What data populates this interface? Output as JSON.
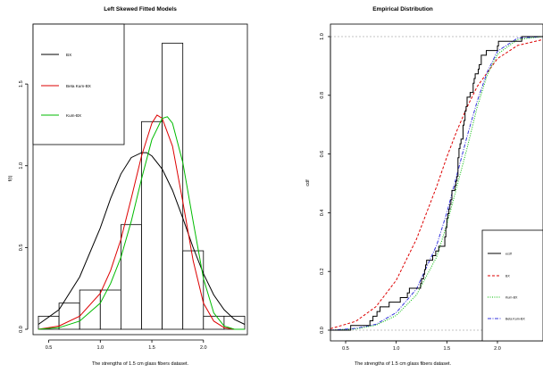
{
  "chart_data": [
    {
      "type": "histogram",
      "title": "Left Skewed Fitted Models",
      "xlabel": "The strengths of 1.5 cm glass fibers dataset.",
      "ylabel": "f(t)",
      "xlim": [
        0.4,
        2.4
      ],
      "ylim": [
        0,
        1.85
      ],
      "x_ticks": [
        0.5,
        1.0,
        1.5,
        2.0
      ],
      "x_tick_labels": [
        "0.5",
        "1.0",
        "1.5",
        "2.0"
      ],
      "y_ticks": [
        0,
        0.5,
        1.0,
        1.5
      ],
      "y_tick_labels": [
        "0.0",
        "0.5",
        "1.0",
        "1.5"
      ],
      "histogram": {
        "breaks": [
          0.4,
          0.6,
          0.8,
          1.0,
          1.2,
          1.4,
          1.6,
          1.8,
          2.0,
          2.2,
          2.4
        ],
        "density": [
          0.08,
          0.16,
          0.24,
          0.24,
          0.64,
          1.27,
          1.75,
          0.48,
          0.08,
          0.08
        ]
      },
      "legend": {
        "position": "top-left",
        "entries": [
          "BX",
          "Beta Kum-BX",
          "Kum-BX"
        ]
      },
      "series": [
        {
          "name": "BX",
          "color": "#000000",
          "x": [
            0.4,
            0.6,
            0.8,
            1.0,
            1.1,
            1.2,
            1.3,
            1.4,
            1.45,
            1.5,
            1.6,
            1.7,
            1.8,
            1.9,
            2.0,
            2.1,
            2.2,
            2.3,
            2.4
          ],
          "y": [
            0.03,
            0.12,
            0.32,
            0.62,
            0.8,
            0.95,
            1.05,
            1.08,
            1.08,
            1.06,
            0.98,
            0.85,
            0.68,
            0.5,
            0.34,
            0.21,
            0.12,
            0.06,
            0.03
          ]
        },
        {
          "name": "Beta Kum-BX",
          "color": "#dd0000",
          "x": [
            0.4,
            0.6,
            0.8,
            1.0,
            1.1,
            1.2,
            1.3,
            1.4,
            1.5,
            1.55,
            1.6,
            1.7,
            1.8,
            1.9,
            2.0,
            2.1,
            2.2,
            2.3,
            2.4
          ],
          "y": [
            0.0,
            0.02,
            0.08,
            0.22,
            0.36,
            0.55,
            0.8,
            1.06,
            1.26,
            1.31,
            1.29,
            1.12,
            0.78,
            0.42,
            0.16,
            0.05,
            0.01,
            0.0,
            0.0
          ]
        },
        {
          "name": "Kum-BX",
          "color": "#00bb00",
          "x": [
            0.4,
            0.6,
            0.8,
            1.0,
            1.1,
            1.2,
            1.3,
            1.4,
            1.5,
            1.6,
            1.65,
            1.7,
            1.8,
            1.9,
            2.0,
            2.1,
            2.2,
            2.3,
            2.4
          ],
          "y": [
            0.0,
            0.01,
            0.05,
            0.16,
            0.28,
            0.44,
            0.66,
            0.92,
            1.16,
            1.29,
            1.3,
            1.26,
            1.02,
            0.66,
            0.31,
            0.1,
            0.02,
            0.0,
            0.0
          ]
        }
      ]
    },
    {
      "type": "line",
      "title": "Empirical Distribution",
      "xlabel": "The strengths of 1.5 cm glass fibers dataset.",
      "ylabel": "cdf",
      "xlim": [
        0.35,
        2.45
      ],
      "ylim": [
        0,
        1.04
      ],
      "x_ticks": [
        0.5,
        1.0,
        1.5,
        2.0
      ],
      "x_tick_labels": [
        "0.5",
        "1.0",
        "1.5",
        "2.0"
      ],
      "y_ticks": [
        0,
        0.2,
        0.4,
        0.6,
        0.8,
        1.0
      ],
      "y_tick_labels": [
        "0.0",
        "0.2",
        "0.4",
        "0.6",
        "0.8",
        "1.0"
      ],
      "reference_lines": [
        0,
        1
      ],
      "legend": {
        "position": "bottom-right",
        "entries": [
          "ecdf",
          "BX",
          "Kum-BX",
          "Beta Kum-BX"
        ]
      },
      "ecdf_data": [
        0.55,
        0.74,
        0.77,
        0.81,
        0.84,
        0.93,
        1.04,
        1.11,
        1.13,
        1.24,
        1.25,
        1.27,
        1.28,
        1.29,
        1.3,
        1.36,
        1.39,
        1.42,
        1.48,
        1.48,
        1.49,
        1.49,
        1.5,
        1.5,
        1.51,
        1.52,
        1.53,
        1.54,
        1.55,
        1.55,
        1.58,
        1.59,
        1.6,
        1.61,
        1.61,
        1.61,
        1.61,
        1.62,
        1.62,
        1.63,
        1.64,
        1.66,
        1.66,
        1.66,
        1.67,
        1.68,
        1.68,
        1.69,
        1.7,
        1.7,
        1.73,
        1.76,
        1.76,
        1.77,
        1.78,
        1.81,
        1.82,
        1.84,
        1.84,
        1.89,
        2.0,
        2.01,
        2.24
      ],
      "series": [
        {
          "name": "ecdf",
          "color": "#000000",
          "style": "solid"
        },
        {
          "name": "BX",
          "color": "#dd0000",
          "style": "dashed",
          "x": [
            0.35,
            0.6,
            0.8,
            1.0,
            1.2,
            1.4,
            1.5,
            1.6,
            1.7,
            1.8,
            2.0,
            2.2,
            2.45
          ],
          "y": [
            0.005,
            0.03,
            0.08,
            0.17,
            0.31,
            0.49,
            0.59,
            0.68,
            0.76,
            0.83,
            0.925,
            0.97,
            0.99
          ]
        },
        {
          "name": "Kum-BX",
          "color": "#00bb00",
          "style": "dotted",
          "x": [
            0.35,
            0.6,
            0.8,
            1.0,
            1.2,
            1.4,
            1.5,
            1.6,
            1.7,
            1.8,
            1.9,
            2.0,
            2.2,
            2.45
          ],
          "y": [
            0.0,
            0.004,
            0.017,
            0.05,
            0.12,
            0.25,
            0.36,
            0.49,
            0.62,
            0.76,
            0.87,
            0.94,
            0.99,
            1.0
          ]
        },
        {
          "name": "Beta Kum-BX",
          "color": "#3333dd",
          "style": "dashdot",
          "x": [
            0.35,
            0.6,
            0.8,
            1.0,
            1.2,
            1.4,
            1.5,
            1.6,
            1.7,
            1.8,
            1.9,
            2.0,
            2.2,
            2.45
          ],
          "y": [
            0.0,
            0.006,
            0.02,
            0.06,
            0.14,
            0.29,
            0.4,
            0.53,
            0.66,
            0.78,
            0.88,
            0.95,
            0.995,
            1.0
          ]
        }
      ]
    }
  ]
}
